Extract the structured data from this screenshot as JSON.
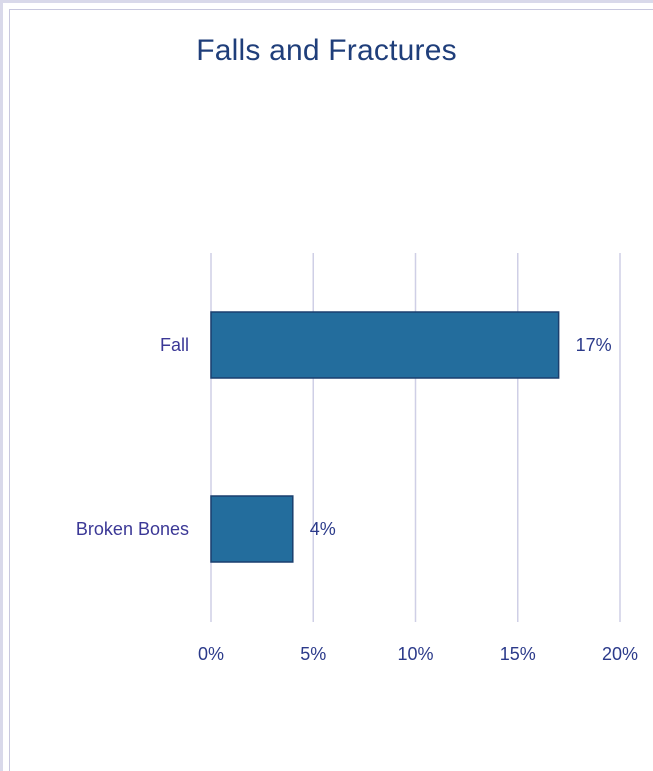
{
  "chart_data": {
    "type": "bar",
    "orientation": "horizontal",
    "title": "Falls and Fractures",
    "categories": [
      "Fall",
      "Broken Bones"
    ],
    "values": [
      17,
      4
    ],
    "data_labels": [
      "17%",
      "4%"
    ],
    "xlim": [
      0,
      20
    ],
    "x_ticks": [
      "0%",
      "5%",
      "10%",
      "15%",
      "20%"
    ],
    "grid": "vertical",
    "colors": {
      "bar": "#236d9d",
      "bar_border": "#1a3f6e",
      "grid": "#cfcfe6",
      "title": "#1f3e7a",
      "label": "#3b3896"
    }
  }
}
